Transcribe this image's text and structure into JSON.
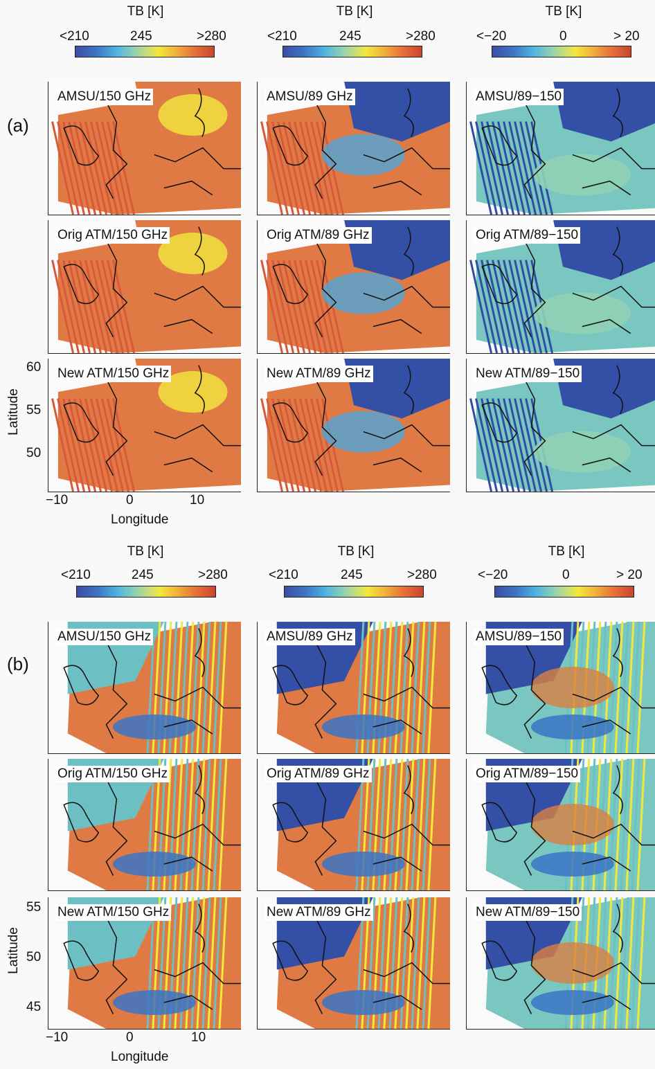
{
  "colorbars": [
    {
      "title": "TB [K]",
      "ticks": [
        "<210",
        "245",
        ">280"
      ]
    },
    {
      "title": "TB [K]",
      "ticks": [
        "<210",
        "245",
        ">280"
      ]
    },
    {
      "title": "TB [K]",
      "ticks": [
        "<−20",
        "0",
        "> 20"
      ]
    }
  ],
  "colors": {
    "low": "#3a4fa3",
    "mid": "#f2e83d",
    "high": "#c9452c",
    "warm": "#e07a45",
    "ocean_blue": "#3450a6",
    "teal": "#6cc0c4",
    "coast": "#111111"
  },
  "section_a": {
    "label": "(a)",
    "panels": [
      [
        "AMSU/150 GHz",
        "AMSU/89 GHz",
        "AMSU/89−150"
      ],
      [
        "Orig ATM/150 GHz",
        "Orig ATM/89 GHz",
        "Orig ATM/89−150"
      ],
      [
        "New ATM/150 GHz",
        "New ATM/89 GHz",
        "New ATM/89−150"
      ]
    ],
    "y_ticks": [
      "60",
      "55",
      "50"
    ],
    "x_ticks": [
      "−10",
      "0",
      "10"
    ],
    "ylabel": "Latitude",
    "xlabel": "Longitude"
  },
  "section_b": {
    "label": "(b)",
    "panels": [
      [
        "AMSU/150 GHz",
        "AMSU/89 GHz",
        "AMSU/89−150"
      ],
      [
        "Orig ATM/150 GHz",
        "Orig ATM/89 GHz",
        "Orig ATM/89−150"
      ],
      [
        "New ATM/150 GHz",
        "New ATM/89 GHz",
        "New ATM/89−150"
      ]
    ],
    "y_ticks": [
      "55",
      "50",
      "45"
    ],
    "x_ticks": [
      "−10",
      "0",
      "10"
    ],
    "ylabel": "Latitude",
    "xlabel": "Longitude"
  }
}
